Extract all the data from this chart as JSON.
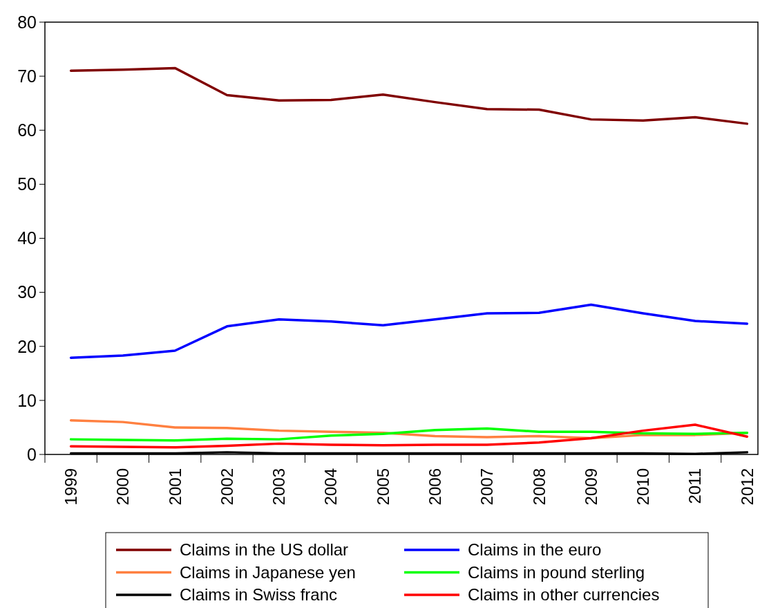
{
  "chart_data": {
    "type": "line",
    "categories": [
      "1999",
      "2000",
      "2001",
      "2002",
      "2003",
      "2004",
      "2005",
      "2006",
      "2007",
      "2008",
      "2009",
      "2010",
      "2011",
      "2012"
    ],
    "series": [
      {
        "name": "Claims in the US dollar",
        "color": "#800000",
        "values": [
          71.0,
          71.2,
          71.5,
          66.5,
          65.5,
          65.6,
          66.6,
          65.2,
          63.9,
          63.8,
          62.0,
          61.8,
          62.4,
          61.2
        ]
      },
      {
        "name": "Claims in the euro",
        "color": "#0000ff",
        "values": [
          17.9,
          18.3,
          19.2,
          23.7,
          25.0,
          24.6,
          23.9,
          25.0,
          26.1,
          26.2,
          27.7,
          26.1,
          24.7,
          24.2
        ]
      },
      {
        "name": "Claims in Japanese yen",
        "color": "#ff8040",
        "values": [
          6.3,
          6.0,
          5.0,
          4.9,
          4.4,
          4.2,
          4.0,
          3.4,
          3.2,
          3.4,
          3.0,
          3.6,
          3.6,
          4.0
        ]
      },
      {
        "name": "Claims in pound sterling",
        "color": "#00ff00",
        "values": [
          2.8,
          2.7,
          2.6,
          2.9,
          2.8,
          3.5,
          3.8,
          4.5,
          4.8,
          4.2,
          4.2,
          3.9,
          3.8,
          4.0
        ]
      },
      {
        "name": "Claims in Swiss franc",
        "color": "#000000",
        "values": [
          0.2,
          0.2,
          0.2,
          0.4,
          0.2,
          0.2,
          0.2,
          0.2,
          0.2,
          0.2,
          0.2,
          0.2,
          0.1,
          0.4
        ]
      },
      {
        "name": "Claims in other currencies",
        "color": "#ff0000",
        "values": [
          1.5,
          1.4,
          1.3,
          1.6,
          2.0,
          1.8,
          1.7,
          1.8,
          1.8,
          2.2,
          3.0,
          4.4,
          5.5,
          3.3
        ]
      }
    ],
    "ylim": [
      0,
      80
    ],
    "yticks": [
      0,
      10,
      20,
      30,
      40,
      50,
      60,
      70,
      80
    ],
    "legend": "bottom"
  }
}
